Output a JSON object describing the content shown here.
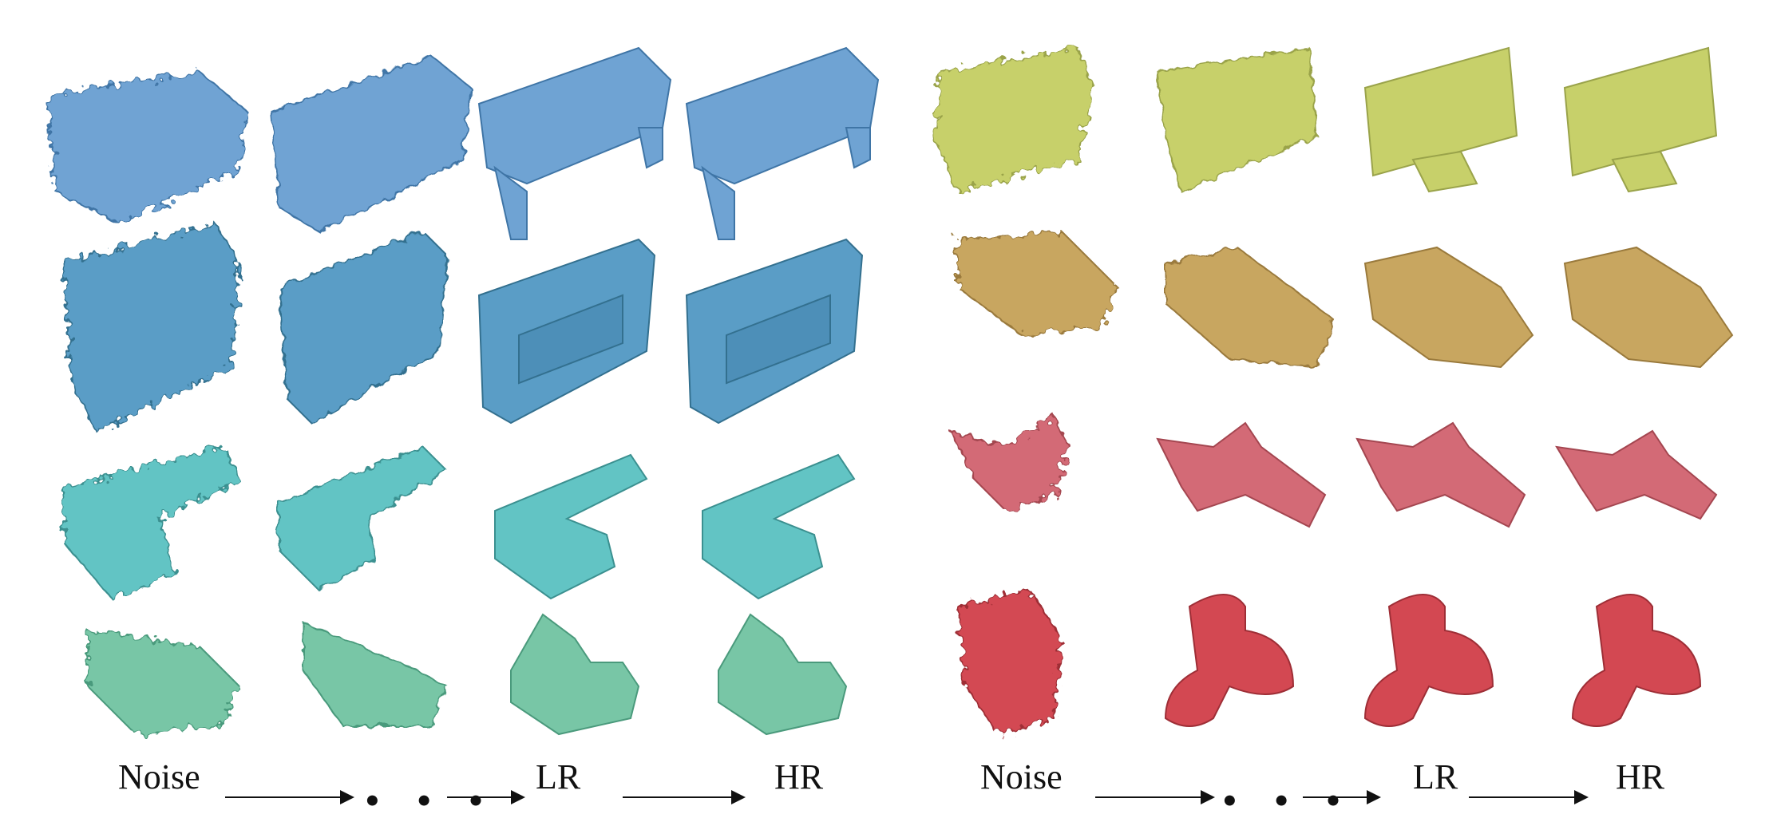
{
  "caption": {
    "left": {
      "noise": "Noise",
      "ellipsis": "• • •",
      "lr": "LR",
      "hr": "HR"
    },
    "right": {
      "noise": "Noise",
      "ellipsis": "• • •",
      "lr": "LR",
      "hr": "HR"
    }
  },
  "groups": [
    {
      "name": "left",
      "rows": [
        {
          "object": "bench",
          "color": "#6fa3d3"
        },
        {
          "object": "cabinet",
          "color": "#5a9dc6"
        },
        {
          "object": "sofa",
          "color": "#62c4c4"
        },
        {
          "object": "sofa-small",
          "color": "#78c6a6"
        }
      ]
    },
    {
      "name": "right",
      "rows": [
        {
          "object": "monitor",
          "color": "#c7d06a"
        },
        {
          "object": "car",
          "color": "#c8a660"
        },
        {
          "object": "airplane",
          "color": "#d36a76"
        },
        {
          "object": "lamp",
          "color": "#d34852"
        }
      ]
    }
  ],
  "stages": [
    "noise",
    "intermediate",
    "lr",
    "hr"
  ]
}
